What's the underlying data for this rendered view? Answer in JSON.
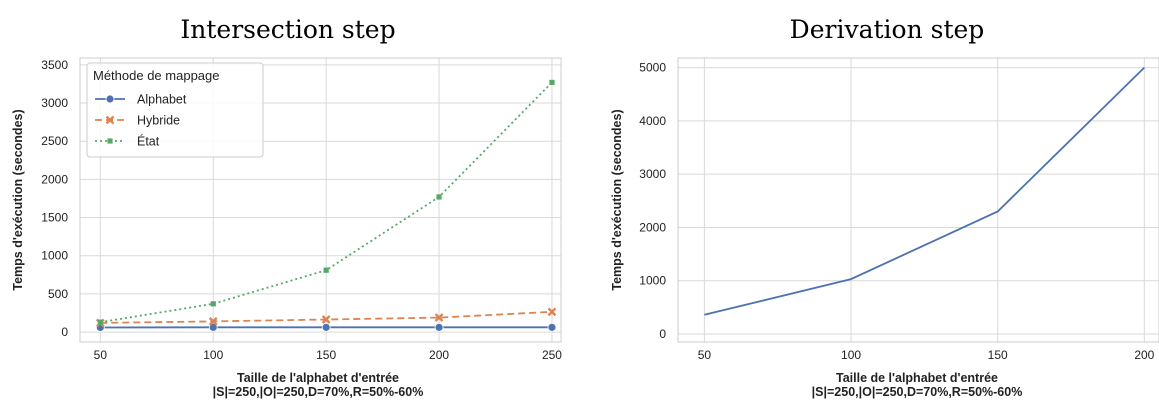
{
  "chart_data": [
    {
      "type": "line",
      "title": "Intersection step",
      "xlabel": "Taille de l'alphabet d'entrée",
      "xlabel2": "|S|=250,|O|=250,D=70%,R=50%-60%",
      "ylabel": "Temps d'exécution (secondes)",
      "x": [
        50,
        100,
        150,
        200,
        250
      ],
      "xticks": [
        "50",
        "100",
        "150",
        "200",
        "250"
      ],
      "yticks": [
        "0",
        "500",
        "1000",
        "1500",
        "2000",
        "2500",
        "3000",
        "3500"
      ],
      "xlim": [
        41,
        254
      ],
      "ylim": [
        -130,
        3590
      ],
      "grid": true,
      "legend": {
        "title": "Méthode de mappage",
        "placement": "upper-left"
      },
      "series": [
        {
          "name": "Alphabet",
          "color": "#4c72b0",
          "dash": "solid",
          "marker": "circle",
          "values": [
            60,
            62,
            62,
            62,
            62
          ]
        },
        {
          "name": "Hybride",
          "color": "#dd8452",
          "dash": "dashed",
          "marker": "x",
          "values": [
            120,
            140,
            165,
            190,
            265
          ]
        },
        {
          "name": "État",
          "color": "#55a868",
          "dash": "dotted",
          "marker": "square",
          "values": [
            130,
            370,
            810,
            1770,
            3270
          ]
        }
      ]
    },
    {
      "type": "line",
      "title": "Derivation step",
      "xlabel": "Taille de l'alphabet d'entrée",
      "xlabel2": "|S|=250,|O|=250,D=70%,R=50%-60%",
      "ylabel": "Temps d'exécution (secondes)",
      "x": [
        50,
        100,
        150,
        200
      ],
      "xticks": [
        "50",
        "100",
        "150",
        "200"
      ],
      "yticks": [
        "0",
        "1000",
        "2000",
        "3000",
        "4000",
        "5000"
      ],
      "xlim": [
        41,
        205
      ],
      "ylim": [
        -150,
        5180
      ],
      "grid": true,
      "series": [
        {
          "color": "#4c72b0",
          "dash": "solid",
          "values": [
            360,
            1030,
            2300,
            5000
          ]
        }
      ]
    }
  ]
}
